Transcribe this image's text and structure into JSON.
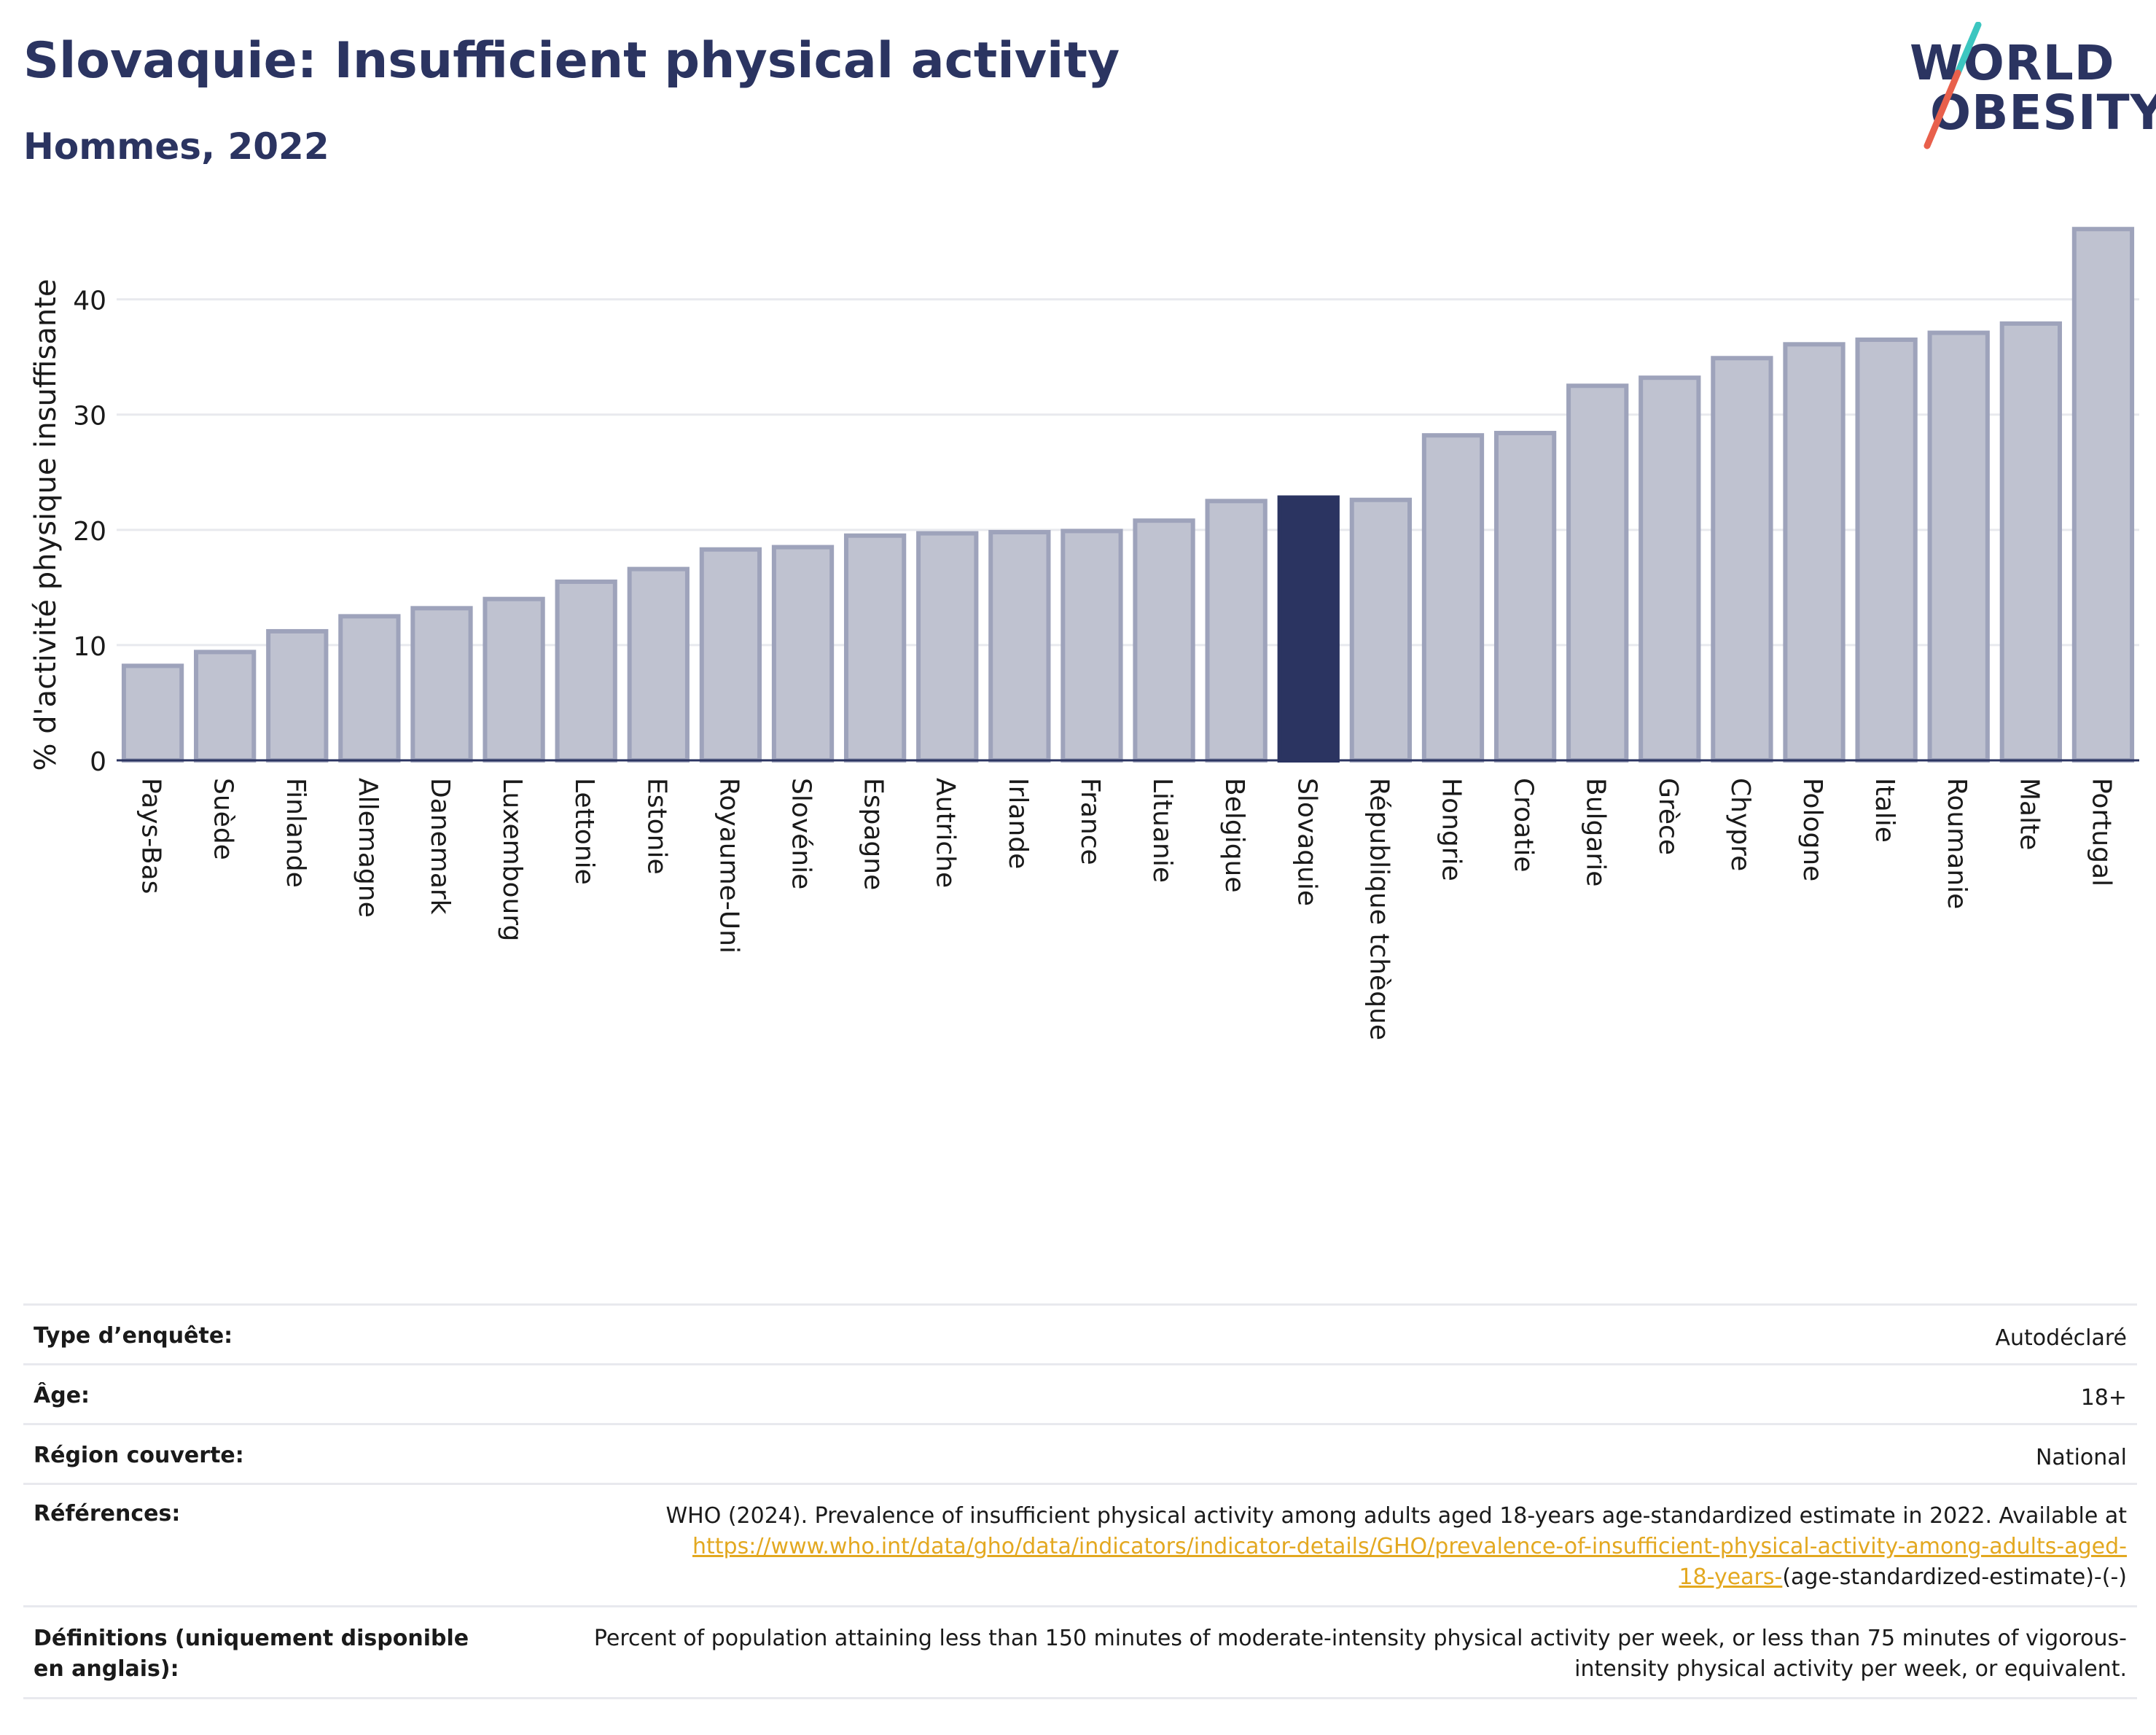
{
  "header": {
    "title": "Slovaquie: Insufficient physical activity",
    "subtitle": "Hommes, 2022"
  },
  "logo": {
    "line1": "WORLD",
    "line2": "OBESITY",
    "colors": {
      "text": "#2b3461",
      "slash_top": "#3cc6c0",
      "slash_bottom": "#e8604c"
    }
  },
  "colors": {
    "bar": "#bfc2d0",
    "bar_border": "#9ea3bb",
    "highlight": "#2b3461",
    "grid": "#e8e9ee",
    "axis": "#2b3461",
    "link": "#e3a820"
  },
  "chart_data": {
    "type": "bar",
    "ylabel": "% d'activité physique insuffisante",
    "ylim": [
      0,
      47
    ],
    "yticks": [
      0,
      10,
      20,
      30,
      40
    ],
    "grid": true,
    "highlight": "Slovaquie",
    "categories": [
      "Pays-Bas",
      "Suède",
      "Finlande",
      "Allemagne",
      "Danemark",
      "Luxembourg",
      "Lettonie",
      "Estonie",
      "Royaume-Uni",
      "Slovénie",
      "Espagne",
      "Autriche",
      "Irlande",
      "France",
      "Lituanie",
      "Belgique",
      "Slovaquie",
      "République tchèque",
      "Hongrie",
      "Croatie",
      "Bulgarie",
      "Grèce",
      "Chypre",
      "Pologne",
      "Italie",
      "Roumanie",
      "Malte",
      "Portugal"
    ],
    "values": [
      8.2,
      9.4,
      11.2,
      12.5,
      13.2,
      14.0,
      15.5,
      16.6,
      18.3,
      18.5,
      19.5,
      19.7,
      19.8,
      19.9,
      20.8,
      22.5,
      22.8,
      22.6,
      28.2,
      28.4,
      32.5,
      33.2,
      34.9,
      36.1,
      36.5,
      37.1,
      37.9,
      46.1
    ]
  },
  "info": {
    "rows": [
      {
        "label": "Type d’enquête:",
        "value": "Autodéclaré"
      },
      {
        "label": "Âge:",
        "value": "18+"
      },
      {
        "label": "Région couverte:",
        "value": "National"
      }
    ],
    "references": {
      "label": "Références:",
      "text": "WHO (2024). Prevalence of insufficient physical activity among adults aged 18-years age-standardized estimate in 2022. Available at",
      "link_line1": "https://www.who.int/data/gho/data/indicators/indicator-details/GHO/prevalence-of-insufficient-physical-activity-among-adults-aged-",
      "link_line2": "18-years-",
      "suffix": "(age-standardized-estimate)-(-)"
    },
    "definitions": {
      "label": "Définitions (uniquement disponible en anglais):",
      "text": "Percent of population attaining less than 150 minutes of moderate-intensity physical activity per week, or less than 75 minutes of vigorous-intensity physical activity per week, or equivalent."
    }
  }
}
